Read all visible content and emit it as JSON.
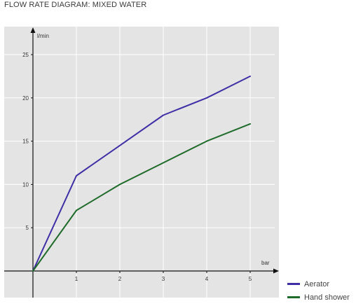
{
  "page_title": "FLOW RATE DIAGRAM: MIXED WATER",
  "chart_data": {
    "type": "line",
    "title": "FLOW RATE DIAGRAM: MIXED WATER",
    "xlabel": "bar",
    "ylabel": "l/min",
    "x": [
      0,
      1,
      2,
      3,
      4,
      5
    ],
    "x_ticks": [
      "1",
      "2",
      "3",
      "4",
      "5"
    ],
    "y_ticks": [
      "5",
      "10",
      "15",
      "20",
      "25"
    ],
    "xlim": [
      0,
      5
    ],
    "ylim": [
      0,
      25
    ],
    "grid": true,
    "legend_position": "bottom-right",
    "series": [
      {
        "name": "Aerator",
        "color": "#3f2fa6",
        "values": [
          0,
          11,
          14.5,
          18,
          20,
          22.5
        ]
      },
      {
        "name": "Hand shower",
        "color": "#1f6b2a",
        "values": [
          0,
          7,
          10,
          12.5,
          15,
          17
        ]
      }
    ]
  }
}
